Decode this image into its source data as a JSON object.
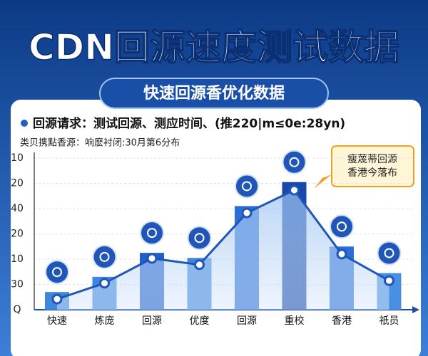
{
  "chart_data": {
    "type": "bar",
    "title": "CDN回源速度测试数据",
    "subtitle": "快速回源香优化数据",
    "legend": "回源请求：测试回源、测应时间、(推220|m≤0e:28yn)",
    "note": "类贝携點香源：响麽衬闭:30月第6分布",
    "annotation": [
      "瘦蔑蒂回源",
      "香港今落布"
    ],
    "categories": [
      "快速",
      "炼庞",
      "回源",
      "优度",
      "回源",
      "重校",
      "香港",
      "祇员"
    ],
    "series": [
      {
        "type": "bar",
        "colors": [
          "#3f86dd",
          "#3f86dd",
          "#1f5fc9",
          "#3f86dd",
          "#2a6fd6",
          "#1848a8",
          "#2a6fd6",
          "#4a90e2"
        ],
        "values": [
          0.7,
          1.3,
          2.25,
          2.05,
          4.1,
          5.05,
          2.5,
          1.45
        ]
      },
      {
        "type": "line",
        "color": "#1f56b8",
        "values": [
          0.42,
          1.05,
          2.03,
          1.78,
          3.83,
          4.73,
          2.2,
          1.15
        ]
      }
    ],
    "ylim": [
      0,
      6.2
    ],
    "yticks": [
      {
        "value": 0,
        "label": "Q"
      },
      {
        "value": 1,
        "label": "30"
      },
      {
        "value": 2,
        "label": "10"
      },
      {
        "value": 3,
        "label": "20"
      },
      {
        "value": 4,
        "label": "40"
      },
      {
        "value": 5,
        "label": "20"
      },
      {
        "value": 6,
        "label": "10"
      }
    ],
    "grid": true
  }
}
